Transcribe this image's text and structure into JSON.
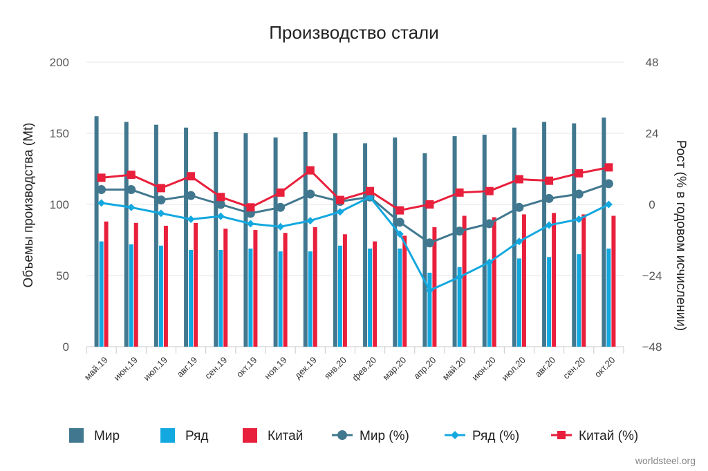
{
  "chart_data": {
    "type": "bar",
    "title": "Производство стали",
    "ylabel": "Объемы производства  (Mt)",
    "y2label": "Рост (% в годовом исчислении)",
    "ylim": [
      0,
      200
    ],
    "y2lim": [
      -48,
      48
    ],
    "yticks": [
      "0",
      "50",
      "100",
      "150",
      "200"
    ],
    "y2ticks": [
      "−48",
      "−24",
      "0",
      "24",
      "48"
    ],
    "categories": [
      "май.19",
      "июн.19",
      "июл.19",
      "авг.19",
      "сен.19",
      "окт.19",
      "ноя.19",
      "дек.19",
      "янв.20",
      "фев.20",
      "мар.20",
      "апр.20",
      "май.20",
      "июн.20",
      "июл.20",
      "авг.20",
      "сен.20",
      "окт.20"
    ],
    "series": [
      {
        "name": "Мир",
        "type": "bar",
        "axis": "left",
        "color": "#41788f",
        "values": [
          162,
          158,
          156,
          154,
          151,
          150,
          147,
          151,
          150,
          143,
          147,
          136,
          148,
          149,
          154,
          158,
          157,
          161
        ]
      },
      {
        "name": "Ряд",
        "type": "bar",
        "axis": "left",
        "color": "#13a8e0",
        "values": [
          74,
          72,
          71,
          68,
          68,
          69,
          67,
          67,
          71,
          69,
          69,
          52,
          56,
          58,
          62,
          63,
          65,
          69
        ]
      },
      {
        "name": "Китай",
        "type": "bar",
        "axis": "left",
        "color": "#e8203c",
        "values": [
          88,
          87,
          85,
          87,
          83,
          82,
          80,
          84,
          79,
          74,
          78,
          84,
          92,
          91,
          93,
          94,
          93,
          92
        ]
      },
      {
        "name": "Мир  (%)",
        "type": "line",
        "axis": "right",
        "color": "#41788f",
        "marker": "circle",
        "values": [
          5,
          5,
          1.5,
          3,
          0,
          -3,
          -1,
          3.5,
          1,
          2.5,
          -6,
          -13,
          -9,
          -6.5,
          -1,
          2,
          3.5,
          7
        ]
      },
      {
        "name": "Ряд  (%)",
        "type": "line",
        "axis": "right",
        "color": "#13a8e0",
        "marker": "diamond",
        "values": [
          0.5,
          -1,
          -3,
          -5,
          -4,
          -6.5,
          -7.5,
          -5.5,
          -2.5,
          2.5,
          -10,
          -29,
          -24.5,
          -19.5,
          -12.5,
          -7,
          -5,
          0
        ]
      },
      {
        "name": "Китай (%)",
        "type": "line",
        "axis": "right",
        "color": "#e8203c",
        "marker": "square",
        "values": [
          9,
          10,
          5.5,
          9.5,
          2.5,
          -1,
          4,
          11.5,
          1.5,
          4.5,
          -2,
          0,
          4,
          4.5,
          8.5,
          8,
          10.5,
          12.5
        ]
      }
    ],
    "grid": true,
    "legend_position": "bottom",
    "credit": "worldsteel.org"
  }
}
